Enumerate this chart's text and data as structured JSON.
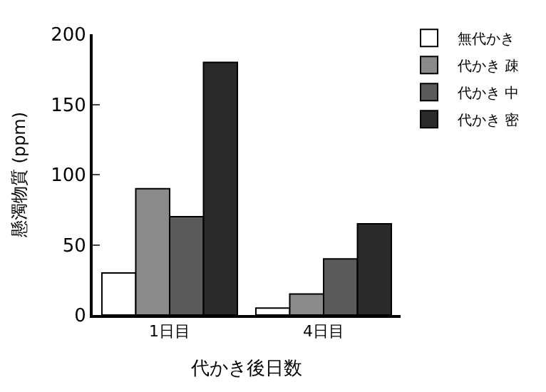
{
  "chart_data": {
    "type": "bar",
    "xlabel": "代かき後日数",
    "ylabel": "懸濁物質 (ppm)",
    "categories": [
      "1日目",
      "4日目"
    ],
    "series": [
      {
        "name": "無代かき",
        "color": "#ffffff",
        "values": [
          30,
          5
        ]
      },
      {
        "name": "代かき 疎",
        "color": "#8a8a8a",
        "values": [
          90,
          15
        ]
      },
      {
        "name": "代かき 中",
        "color": "#5a5a5a",
        "values": [
          70,
          40
        ]
      },
      {
        "name": "代かき 密",
        "color": "#2a2a2a",
        "values": [
          180,
          65
        ]
      }
    ],
    "ylim": [
      0,
      200
    ],
    "yticks": [
      0,
      50,
      100,
      150,
      200
    ],
    "legend": "top right"
  }
}
